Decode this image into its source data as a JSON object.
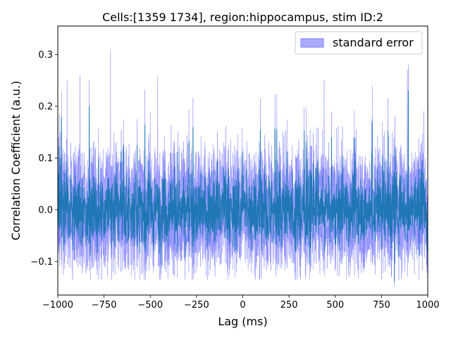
{
  "chart_data": {
    "type": "line",
    "title": "Cells:[1359 1734], region:hippocampus, stim ID:2",
    "xlabel": "Lag (ms)",
    "ylabel": "Correlation Coefficient (a.u.)",
    "xlim": [
      -1000,
      1000
    ],
    "ylim": [
      -0.165,
      0.355
    ],
    "x_ticks": [
      -1000,
      -750,
      -500,
      -250,
      0,
      250,
      500,
      750,
      1000
    ],
    "x_tick_labels": [
      "−1000",
      "−750",
      "−500",
      "−250",
      "0",
      "250",
      "500",
      "750",
      "1000"
    ],
    "y_ticks": [
      -0.1,
      0.0,
      0.1,
      0.2,
      0.3
    ],
    "y_tick_labels": [
      "−0.1",
      "0.0",
      "0.1",
      "0.2",
      "0.3"
    ],
    "grid": false,
    "legend": {
      "placement": "top-right",
      "entries": [
        {
          "label": "standard error",
          "color": "#aaaaff"
        }
      ]
    },
    "series": [
      {
        "kind": "line",
        "color": "#1f77b4",
        "x_range": [
          -1000,
          1000
        ],
        "typical_range": [
          -0.1,
          0.1
        ],
        "peaks": [
          {
            "x": 895,
            "y": 0.23
          },
          {
            "x": 700,
            "y": 0.17
          },
          {
            "x": -830,
            "y": 0.2
          },
          {
            "x": -980,
            "y": 0.18
          },
          {
            "x": 480,
            "y": 0.14
          },
          {
            "x": 820,
            "y": -0.14
          }
        ]
      },
      {
        "kind": "band",
        "name": "standard error",
        "color": "#aaaaff",
        "x_range": [
          -1000,
          1000
        ],
        "upper_range": [
          0.08,
          0.32
        ],
        "lower_range": [
          -0.14,
          -0.08
        ],
        "peaks": [
          {
            "x": -715,
            "y": 0.31
          },
          {
            "x": -950,
            "y": 0.25
          },
          {
            "x": -880,
            "y": 0.26
          },
          {
            "x": -460,
            "y": 0.26
          },
          {
            "x": 890,
            "y": 0.27
          },
          {
            "x": 440,
            "y": 0.25
          },
          {
            "x": 700,
            "y": 0.24
          }
        ]
      }
    ]
  },
  "colors": {
    "line": "#1f77b4",
    "band": "#aaaaff",
    "band_edge": "#7b7bff",
    "axes": "#000000",
    "background": "#ffffff"
  }
}
